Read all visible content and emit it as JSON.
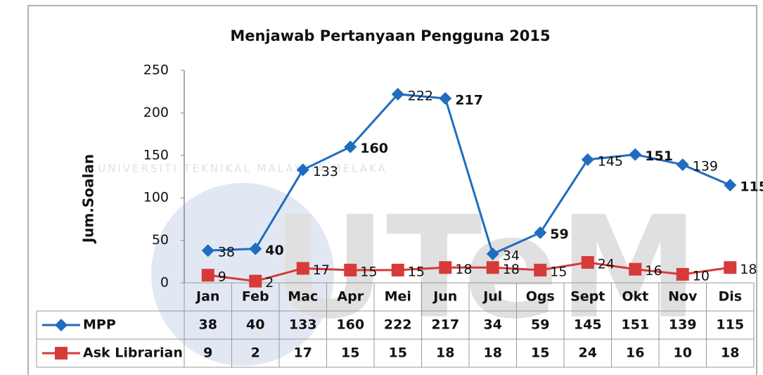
{
  "chart_data": {
    "type": "line",
    "title": "Menjawab Pertanyaan Pengguna 2015",
    "y_label": "Jum.Soalan",
    "categories": [
      "Jan",
      "Feb",
      "Mac",
      "Apr",
      "Mei",
      "Jun",
      "Jul",
      "Ogs",
      "Sept",
      "Okt",
      "Nov",
      "Dis"
    ],
    "series": [
      {
        "name": "MPP",
        "color": "#1f6cc0",
        "marker": "diamond",
        "values": [
          38,
          40,
          133,
          160,
          222,
          217,
          34,
          59,
          145,
          151,
          139,
          115
        ]
      },
      {
        "name": "Ask Librarian",
        "color": "#d63a3a",
        "marker": "square",
        "values": [
          9,
          2,
          17,
          15,
          15,
          18,
          18,
          15,
          24,
          16,
          10,
          18
        ]
      }
    ],
    "ylim": [
      0,
      250
    ],
    "yticks": [
      0,
      50,
      100,
      150,
      200,
      250
    ],
    "grid": false,
    "data_table": true,
    "watermark": {
      "text": "UNIVERSITI TEKNIKAL MALAYSIA MELAKA",
      "logo": "UTeM"
    }
  }
}
